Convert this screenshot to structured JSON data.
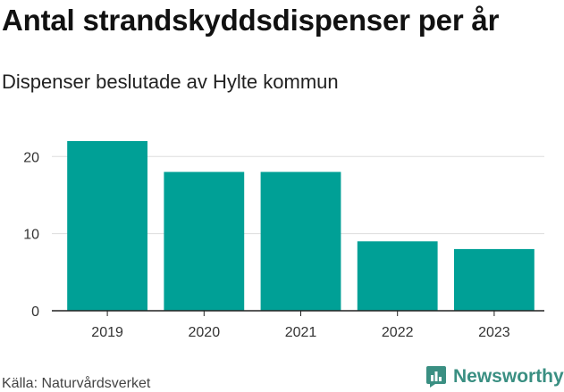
{
  "header": {
    "title": "Antal strandskyddsdispenser per år",
    "subtitle": "Dispenser beslutade av Hylte kommun"
  },
  "footer": {
    "source": "Källa: Naturvårdsverket",
    "brand": "Newsworthy",
    "brand_icon": "newsworthy-logo-icon"
  },
  "colors": {
    "bar": "#00a096",
    "grid": "#dddddd",
    "axis": "#222222",
    "brand": "#3a8f82"
  },
  "chart_data": {
    "type": "bar",
    "title": "Antal strandskyddsdispenser per år",
    "subtitle": "Dispenser beslutade av Hylte kommun",
    "categories": [
      "2019",
      "2020",
      "2021",
      "2022",
      "2023"
    ],
    "values": [
      22,
      18,
      18,
      9,
      8
    ],
    "xlabel": "",
    "ylabel": "",
    "ylim": [
      0,
      22
    ],
    "yticks": [
      0,
      10,
      20
    ],
    "grid": true,
    "legend": "none"
  }
}
